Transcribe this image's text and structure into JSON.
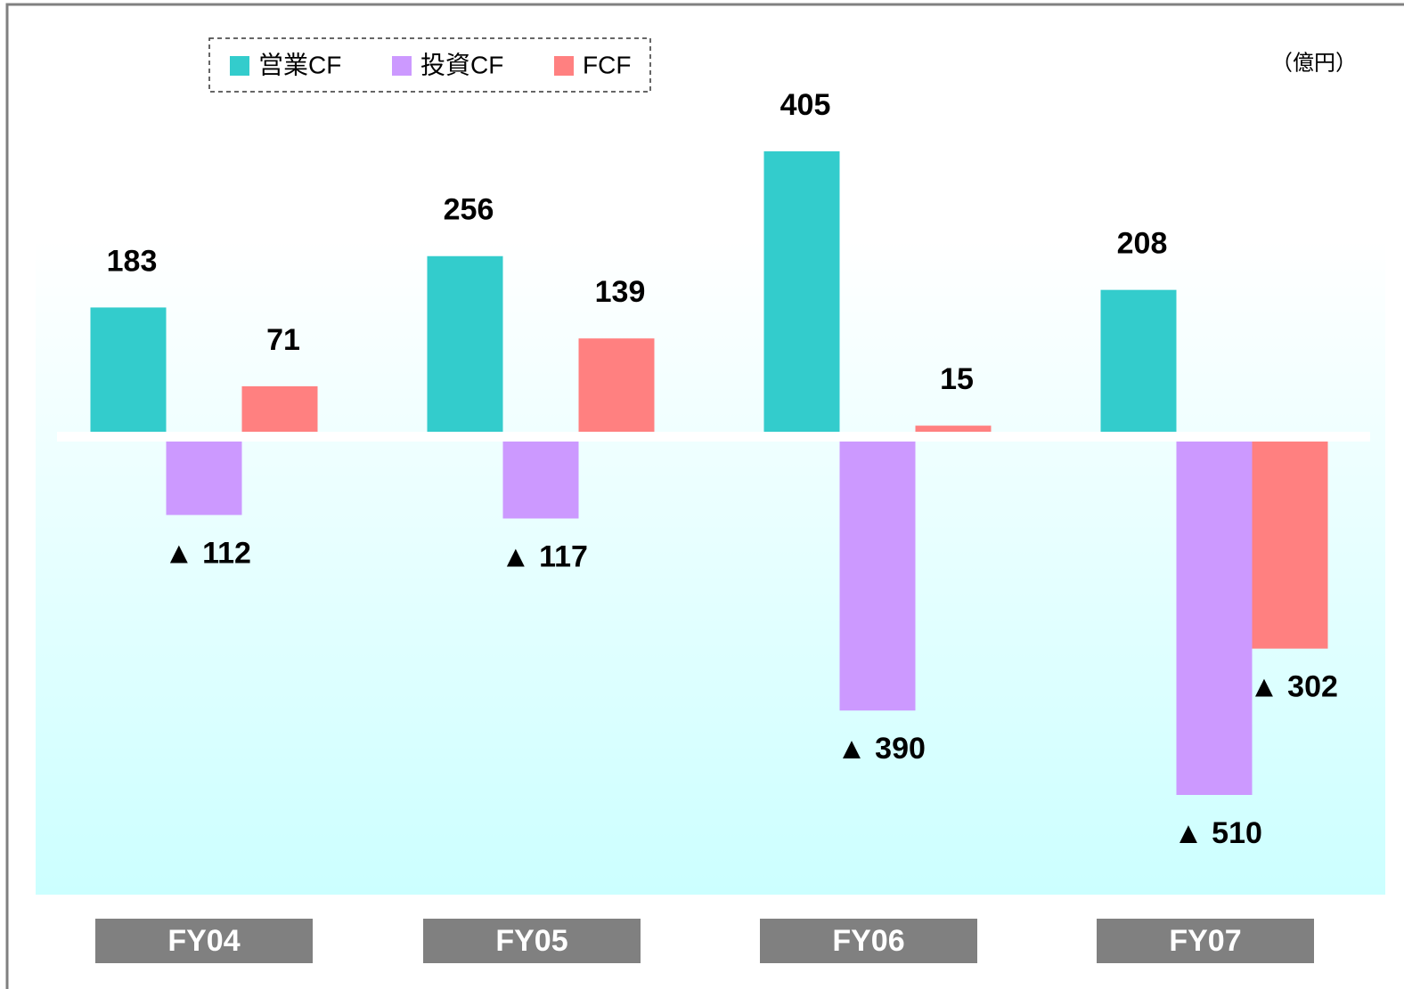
{
  "chart_data": {
    "type": "bar",
    "unit": "（億円）",
    "categories": [
      "FY04",
      "FY05",
      "FY06",
      "FY07"
    ],
    "series": [
      {
        "name": "営業CF",
        "color": "#33cccc",
        "values": [
          183,
          256,
          405,
          208
        ]
      },
      {
        "name": "投資CF",
        "color": "#cc99ff",
        "values": [
          -112,
          -117,
          -390,
          -510
        ],
        "value_labels": [
          "▲ 112",
          "▲ 117",
          "▲ 390",
          "▲ 510"
        ]
      },
      {
        "name": "FCF",
        "color": "#ff8080",
        "values": [
          71,
          139,
          15,
          -302
        ],
        "value_labels": [
          "71",
          "139",
          "15",
          "▲ 302"
        ]
      }
    ],
    "legend": "top-left"
  }
}
